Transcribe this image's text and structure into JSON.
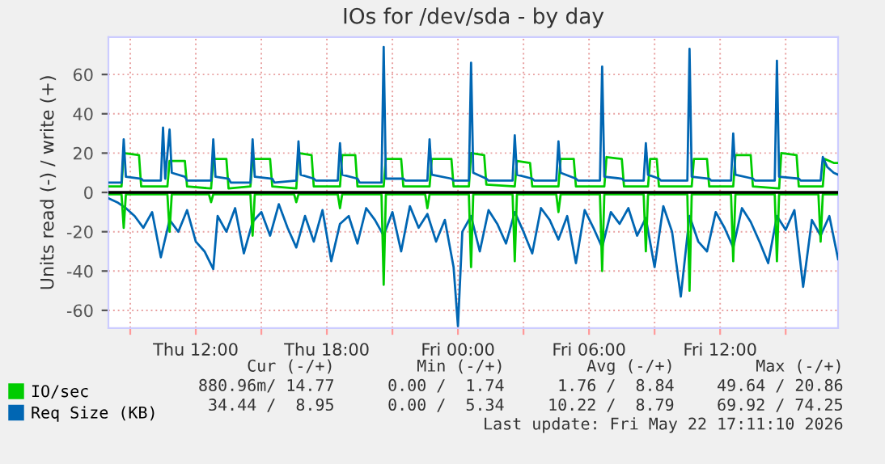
{
  "chart_data": {
    "type": "line",
    "title": "IOs for /dev/sda - by day",
    "ylabel": "Units read (-) / write (+)",
    "xlim": [
      "2026-05-21T08:00",
      "2026-05-22T17:24"
    ],
    "ylim": [
      -69,
      79
    ],
    "xticks": [
      {
        "value": "2026-05-21T09:00",
        "label": null
      },
      {
        "value": "2026-05-21T12:00",
        "label": "Thu 12:00"
      },
      {
        "value": "2026-05-21T15:00",
        "label": null
      },
      {
        "value": "2026-05-21T18:00",
        "label": "Thu 18:00"
      },
      {
        "value": "2026-05-21T21:00",
        "label": null
      },
      {
        "value": "2026-05-22T00:00",
        "label": "Fri 00:00"
      },
      {
        "value": "2026-05-22T03:00",
        "label": null
      },
      {
        "value": "2026-05-22T06:00",
        "label": "Fri 06:00"
      },
      {
        "value": "2026-05-22T09:00",
        "label": null
      },
      {
        "value": "2026-05-22T12:00",
        "label": "Fri 12:00"
      },
      {
        "value": "2026-05-22T15:00",
        "label": null
      }
    ],
    "yticks": [
      -60,
      -40,
      -20,
      0,
      20,
      40,
      60
    ],
    "grid": true,
    "legend": "bottom left",
    "ref_lines": [
      {
        "axis": "y",
        "value": 0,
        "color": "#000000"
      }
    ],
    "series": [
      {
        "color": "#0066b3",
        "x": [
          "2026-05-21T08:00",
          "2026-05-21T08:24",
          "2026-05-21T08:48",
          "2026-05-21T09:12",
          "2026-05-21T09:36",
          "2026-05-21T10:00",
          "2026-05-21T10:24",
          "2026-05-21T10:48",
          "2026-05-21T11:12",
          "2026-05-21T11:36",
          "2026-05-21T12:00",
          "2026-05-21T12:24",
          "2026-05-21T12:48",
          "2026-05-21T13:00",
          "2026-05-21T13:24",
          "2026-05-21T13:48",
          "2026-05-21T14:12",
          "2026-05-21T14:36",
          "2026-05-21T15:00",
          "2026-05-21T15:24",
          "2026-05-21T15:48",
          "2026-05-21T16:12",
          "2026-05-21T16:36",
          "2026-05-21T17:00",
          "2026-05-21T17:24",
          "2026-05-21T17:48",
          "2026-05-21T18:12",
          "2026-05-21T18:36",
          "2026-05-21T19:00",
          "2026-05-21T19:24",
          "2026-05-21T19:48",
          "2026-05-21T20:12",
          "2026-05-21T20:36",
          "2026-05-21T21:00",
          "2026-05-21T21:24",
          "2026-05-21T21:48",
          "2026-05-21T22:12",
          "2026-05-21T22:36",
          "2026-05-21T23:00",
          "2026-05-21T23:24",
          "2026-05-21T23:48",
          "2026-05-22T00:00",
          "2026-05-22T00:12",
          "2026-05-22T00:36",
          "2026-05-22T01:00",
          "2026-05-22T01:24",
          "2026-05-22T01:48",
          "2026-05-22T02:12",
          "2026-05-22T02:36",
          "2026-05-22T03:00",
          "2026-05-22T03:24",
          "2026-05-22T03:48",
          "2026-05-22T04:12",
          "2026-05-22T04:36",
          "2026-05-22T05:00",
          "2026-05-22T05:24",
          "2026-05-22T05:48",
          "2026-05-22T06:12",
          "2026-05-22T06:36",
          "2026-05-22T07:00",
          "2026-05-22T07:24",
          "2026-05-22T07:48",
          "2026-05-22T08:12",
          "2026-05-22T08:36",
          "2026-05-22T09:00",
          "2026-05-22T09:24",
          "2026-05-22T09:48",
          "2026-05-22T10:12",
          "2026-05-22T10:36",
          "2026-05-22T11:00",
          "2026-05-22T11:24",
          "2026-05-22T11:48",
          "2026-05-22T12:12",
          "2026-05-22T12:36",
          "2026-05-22T13:00",
          "2026-05-22T13:24",
          "2026-05-22T13:48",
          "2026-05-22T14:12",
          "2026-05-22T14:36",
          "2026-05-22T15:00",
          "2026-05-22T15:24",
          "2026-05-22T15:48",
          "2026-05-22T16:12",
          "2026-05-22T16:36",
          "2026-05-22T17:00",
          "2026-05-22T17:24"
        ],
        "values": [
          -3,
          -5,
          -8,
          -12,
          -18,
          -10,
          -33,
          -14,
          -20,
          -9,
          -25,
          -30,
          -39,
          -12,
          -20,
          -8,
          -31,
          -15,
          -10,
          -22,
          -6,
          -18,
          -28,
          -12,
          -25,
          -9,
          -35,
          -16,
          -12,
          -26,
          -8,
          -14,
          -22,
          -10,
          -30,
          -7,
          -18,
          -11,
          -25,
          -14,
          -38,
          -68,
          -20,
          -12,
          -30,
          -9,
          -16,
          -26,
          -10,
          -20,
          -31,
          -8,
          -14,
          -24,
          -12,
          -36,
          -9,
          -18,
          -28,
          -10,
          -16,
          -8,
          -22,
          -13,
          -38,
          -7,
          -20,
          -53,
          -12,
          -25,
          -30,
          -10,
          -18,
          -28,
          -8,
          -15,
          -25,
          -36,
          -12,
          -19,
          -9,
          -48,
          -14,
          -22,
          -12,
          -34
        ]
      },
      {
        "color": "#00cc00",
        "x": [
          "2026-05-21T08:00",
          "2026-05-21T08:36",
          "2026-05-21T08:42",
          "2026-05-21T08:48",
          "2026-05-21T10:42",
          "2026-05-21T10:48",
          "2026-05-21T10:54",
          "2026-05-21T12:36",
          "2026-05-21T12:42",
          "2026-05-21T12:48",
          "2026-05-21T14:30",
          "2026-05-21T14:36",
          "2026-05-21T14:42",
          "2026-05-21T16:30",
          "2026-05-21T16:36",
          "2026-05-21T16:42",
          "2026-05-21T18:30",
          "2026-05-21T18:36",
          "2026-05-21T18:42",
          "2026-05-21T20:30",
          "2026-05-21T20:36",
          "2026-05-21T20:42",
          "2026-05-21T22:30",
          "2026-05-21T22:36",
          "2026-05-21T22:42",
          "2026-05-22T00:30",
          "2026-05-22T00:36",
          "2026-05-22T00:42",
          "2026-05-22T02:30",
          "2026-05-22T02:36",
          "2026-05-22T02:42",
          "2026-05-22T04:30",
          "2026-05-22T04:36",
          "2026-05-22T04:42",
          "2026-05-22T06:30",
          "2026-05-22T06:36",
          "2026-05-22T06:42",
          "2026-05-22T08:30",
          "2026-05-22T08:36",
          "2026-05-22T08:42",
          "2026-05-22T10:30",
          "2026-05-22T10:36",
          "2026-05-22T10:42",
          "2026-05-22T12:30",
          "2026-05-22T12:36",
          "2026-05-22T12:42",
          "2026-05-22T14:30",
          "2026-05-22T14:36",
          "2026-05-22T14:42",
          "2026-05-22T16:30",
          "2026-05-22T16:36",
          "2026-05-22T16:42",
          "2026-05-22T17:24"
        ],
        "values": [
          -1,
          -1,
          -18,
          -1,
          -1,
          -20,
          -1,
          -1,
          -5,
          -1,
          -1,
          -22,
          -1,
          -1,
          -5,
          -1,
          -1,
          -8,
          -1,
          -1,
          -47,
          -1,
          -1,
          -8,
          -1,
          -1,
          -38,
          -1,
          -1,
          -35,
          -1,
          -1,
          -10,
          -1,
          -1,
          -40,
          -1,
          -1,
          -30,
          -1,
          -1,
          -50,
          -1,
          -1,
          -35,
          -1,
          -1,
          -35,
          -1,
          -1,
          -25,
          -1,
          -1
        ]
      },
      {
        "name": "IO/sec",
        "color": "#00cc00",
        "x": [
          "2026-05-21T08:00",
          "2026-05-21T08:36",
          "2026-05-21T08:42",
          "2026-05-21T09:24",
          "2026-05-21T09:30",
          "2026-05-21T10:42",
          "2026-05-21T10:48",
          "2026-05-21T11:30",
          "2026-05-21T11:36",
          "2026-05-21T12:42",
          "2026-05-21T12:48",
          "2026-05-21T13:24",
          "2026-05-21T13:30",
          "2026-05-21T14:30",
          "2026-05-21T14:36",
          "2026-05-21T15:24",
          "2026-05-21T15:30",
          "2026-05-21T16:36",
          "2026-05-21T16:42",
          "2026-05-21T17:18",
          "2026-05-21T17:24",
          "2026-05-21T18:36",
          "2026-05-21T18:42",
          "2026-05-21T19:18",
          "2026-05-21T19:24",
          "2026-05-21T20:36",
          "2026-05-21T20:42",
          "2026-05-21T21:24",
          "2026-05-21T21:30",
          "2026-05-21T22:42",
          "2026-05-21T22:48",
          "2026-05-21T23:42",
          "2026-05-21T23:48",
          "2026-05-22T00:30",
          "2026-05-22T00:36",
          "2026-05-22T01:12",
          "2026-05-22T01:18",
          "2026-05-22T02:36",
          "2026-05-22T02:42",
          "2026-05-22T03:18",
          "2026-05-22T03:24",
          "2026-05-22T04:36",
          "2026-05-22T04:42",
          "2026-05-22T05:18",
          "2026-05-22T05:24",
          "2026-05-22T06:42",
          "2026-05-22T06:48",
          "2026-05-22T07:30",
          "2026-05-22T07:36",
          "2026-05-22T08:42",
          "2026-05-22T08:48",
          "2026-05-22T09:06",
          "2026-05-22T09:12",
          "2026-05-22T10:42",
          "2026-05-22T10:48",
          "2026-05-22T11:24",
          "2026-05-22T11:30",
          "2026-05-22T12:36",
          "2026-05-22T12:42",
          "2026-05-22T13:24",
          "2026-05-22T13:30",
          "2026-05-22T14:42",
          "2026-05-22T14:48",
          "2026-05-22T15:30",
          "2026-05-22T15:36",
          "2026-05-22T16:42",
          "2026-05-22T16:48",
          "2026-05-22T17:12",
          "2026-05-22T17:24"
        ],
        "values": [
          3,
          3,
          20,
          19,
          3,
          3,
          16,
          16,
          3,
          2,
          17,
          17,
          2,
          3,
          17,
          17,
          3,
          2,
          20,
          19,
          3,
          3,
          19,
          19,
          3,
          3,
          17,
          17,
          3,
          3,
          17,
          17,
          3,
          3,
          20,
          19,
          4,
          3,
          16,
          15,
          3,
          3,
          17,
          17,
          3,
          3,
          18,
          17,
          3,
          3,
          17,
          17,
          3,
          3,
          17,
          17,
          3,
          3,
          19,
          19,
          3,
          2,
          20,
          19,
          3,
          3,
          17,
          15,
          15
        ]
      },
      {
        "name": "Req Size (KB)",
        "color": "#0066b3",
        "x": [
          "2026-05-21T08:00",
          "2026-05-21T08:36",
          "2026-05-21T08:42",
          "2026-05-21T08:48",
          "2026-05-21T09:30",
          "2026-05-21T09:36",
          "2026-05-21T10:24",
          "2026-05-21T10:30",
          "2026-05-21T10:36",
          "2026-05-21T10:48",
          "2026-05-21T10:54",
          "2026-05-21T11:30",
          "2026-05-21T11:36",
          "2026-05-21T12:42",
          "2026-05-21T12:48",
          "2026-05-21T12:54",
          "2026-05-21T13:30",
          "2026-05-21T13:36",
          "2026-05-21T14:30",
          "2026-05-21T14:36",
          "2026-05-21T14:42",
          "2026-05-21T15:30",
          "2026-05-21T15:36",
          "2026-05-21T16:36",
          "2026-05-21T16:42",
          "2026-05-21T16:48",
          "2026-05-21T17:24",
          "2026-05-21T17:30",
          "2026-05-21T18:30",
          "2026-05-21T18:36",
          "2026-05-21T18:42",
          "2026-05-21T19:24",
          "2026-05-21T19:30",
          "2026-05-21T20:30",
          "2026-05-21T20:36",
          "2026-05-21T20:42",
          "2026-05-21T21:30",
          "2026-05-21T21:36",
          "2026-05-21T22:36",
          "2026-05-21T22:42",
          "2026-05-21T22:48",
          "2026-05-21T23:42",
          "2026-05-21T23:48",
          "2026-05-22T00:30",
          "2026-05-22T00:36",
          "2026-05-22T00:42",
          "2026-05-22T01:18",
          "2026-05-22T01:24",
          "2026-05-22T02:30",
          "2026-05-22T02:36",
          "2026-05-22T02:42",
          "2026-05-22T03:24",
          "2026-05-22T03:30",
          "2026-05-22T04:30",
          "2026-05-22T04:36",
          "2026-05-22T04:42",
          "2026-05-22T05:24",
          "2026-05-22T05:30",
          "2026-05-22T06:30",
          "2026-05-22T06:36",
          "2026-05-22T06:42",
          "2026-05-22T07:30",
          "2026-05-22T07:36",
          "2026-05-22T08:30",
          "2026-05-22T08:36",
          "2026-05-22T08:42",
          "2026-05-22T09:12",
          "2026-05-22T09:18",
          "2026-05-22T10:30",
          "2026-05-22T10:36",
          "2026-05-22T10:42",
          "2026-05-22T11:30",
          "2026-05-22T11:36",
          "2026-05-22T12:30",
          "2026-05-22T12:36",
          "2026-05-22T12:42",
          "2026-05-22T13:30",
          "2026-05-22T13:36",
          "2026-05-22T14:30",
          "2026-05-22T14:36",
          "2026-05-22T14:42",
          "2026-05-22T15:36",
          "2026-05-22T15:42",
          "2026-05-22T16:36",
          "2026-05-22T16:42",
          "2026-05-22T16:54",
          "2026-05-22T17:12",
          "2026-05-22T17:24"
        ],
        "values": [
          5,
          5,
          27,
          8,
          7,
          6,
          6,
          33,
          7,
          32,
          10,
          8,
          6,
          6,
          27,
          8,
          7,
          5,
          5,
          27,
          8,
          7,
          5,
          6,
          26,
          9,
          7,
          6,
          6,
          25,
          9,
          7,
          5,
          5,
          74,
          7,
          7,
          6,
          6,
          27,
          9,
          7,
          6,
          6,
          66,
          10,
          7,
          6,
          6,
          29,
          9,
          7,
          6,
          6,
          26,
          10,
          7,
          6,
          6,
          64,
          8,
          7,
          6,
          6,
          25,
          9,
          7,
          6,
          6,
          73,
          8,
          7,
          6,
          6,
          30,
          9,
          7,
          6,
          6,
          67,
          8,
          7,
          6,
          6,
          18,
          13,
          10,
          9
        ]
      }
    ],
    "annotations": [
      "Cur (-/+)",
      "Min (-/+)",
      "Avg (-/+)",
      "Max (-/+)",
      "880.96m/ 14.77",
      "0.00 /  1.74",
      "1.76 /  8.84",
      "49.64 / 20.86",
      "34.44 /  8.95",
      "0.00 /  5.34",
      "10.22 /  8.79",
      "69.92 / 74.25",
      "Last update: Fri May 22 17:11:10 2026"
    ]
  }
}
